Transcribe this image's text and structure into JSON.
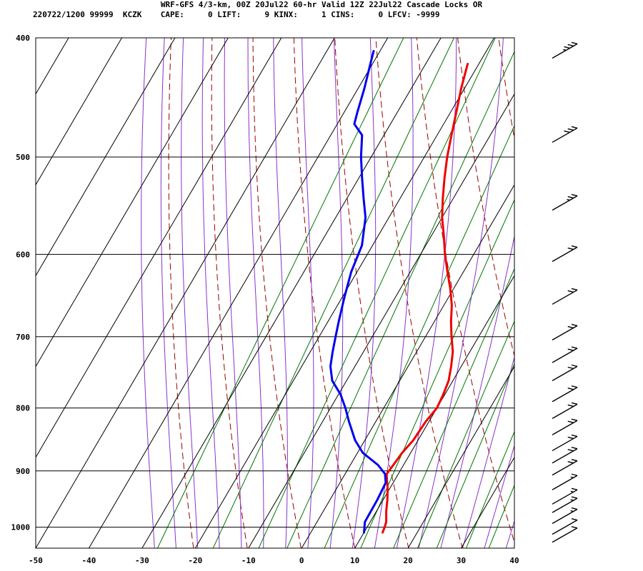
{
  "header": {
    "title": "WRF-GFS 4/3-km, 00Z 20Jul22 60-hr Valid 12Z 22Jul22 Cascade Locks OR",
    "stats": "220722/1200 99999  KCZK    CAPE:     0 LIFT:     9 KINX:     1 CINS:     0 LFCV: -9999"
  },
  "colors": {
    "temperature": "#ee0000",
    "dewpoint": "#0000ee",
    "dry_adiabat": "#990000",
    "moist_adiabat": "#8833cc",
    "mixing_ratio": "#007700",
    "isobar_isotherm": "#000000",
    "wind_barb": "#000000"
  },
  "chart_data": {
    "type": "skew-t",
    "x_axis": {
      "label": "",
      "range": [
        -50,
        40
      ],
      "ticks": [
        -50,
        -40,
        -30,
        -20,
        -10,
        0,
        10,
        20,
        30,
        40
      ]
    },
    "y_axis": {
      "label": "",
      "scale": "log",
      "range": [
        1040,
        400
      ],
      "ticks": [
        400,
        500,
        600,
        700,
        800,
        900,
        1000
      ]
    },
    "series": [
      {
        "key": "temperature",
        "points": [
          [
            1010,
            13.5
          ],
          [
            1000,
            13.3
          ],
          [
            990,
            13.0
          ],
          [
            970,
            11.8
          ],
          [
            950,
            10.8
          ],
          [
            930,
            9.6
          ],
          [
            915,
            8.5
          ],
          [
            905,
            7.8
          ],
          [
            895,
            8.0
          ],
          [
            870,
            8.4
          ],
          [
            850,
            9.1
          ],
          [
            820,
            9.4
          ],
          [
            800,
            10.0
          ],
          [
            780,
            9.7
          ],
          [
            760,
            9.2
          ],
          [
            740,
            8.1
          ],
          [
            720,
            6.8
          ],
          [
            700,
            4.9
          ],
          [
            680,
            3.1
          ],
          [
            660,
            1.5
          ],
          [
            640,
            -0.6
          ],
          [
            620,
            -3.0
          ],
          [
            600,
            -5.4
          ],
          [
            580,
            -7.6
          ],
          [
            560,
            -10.0
          ],
          [
            540,
            -12.0
          ],
          [
            520,
            -13.9
          ],
          [
            500,
            -15.7
          ],
          [
            480,
            -17.3
          ],
          [
            460,
            -18.9
          ],
          [
            440,
            -20.6
          ],
          [
            420,
            -22.1
          ]
        ]
      },
      {
        "key": "dewpoint",
        "points": [
          [
            1010,
            10.0
          ],
          [
            1000,
            9.5
          ],
          [
            990,
            9.0
          ],
          [
            950,
            8.9
          ],
          [
            920,
            8.6
          ],
          [
            905,
            7.5
          ],
          [
            890,
            5.2
          ],
          [
            870,
            1.0
          ],
          [
            850,
            -1.8
          ],
          [
            820,
            -5.1
          ],
          [
            800,
            -7.2
          ],
          [
            780,
            -9.6
          ],
          [
            760,
            -12.7
          ],
          [
            740,
            -14.6
          ],
          [
            720,
            -15.8
          ],
          [
            700,
            -16.9
          ],
          [
            680,
            -18.0
          ],
          [
            650,
            -19.6
          ],
          [
            620,
            -21.1
          ],
          [
            590,
            -22.0
          ],
          [
            560,
            -24.4
          ],
          [
            540,
            -26.9
          ],
          [
            520,
            -29.4
          ],
          [
            500,
            -31.9
          ],
          [
            480,
            -34.1
          ],
          [
            470,
            -36.8
          ],
          [
            460,
            -37.5
          ],
          [
            440,
            -38.8
          ],
          [
            420,
            -40.4
          ],
          [
            410,
            -41.2
          ]
        ]
      }
    ],
    "wind_barbs": [
      {
        "pressure": 410,
        "speed_kt": 35
      },
      {
        "pressure": 480,
        "speed_kt": 30
      },
      {
        "pressure": 545,
        "speed_kt": 25
      },
      {
        "pressure": 600,
        "speed_kt": 20
      },
      {
        "pressure": 650,
        "speed_kt": 20
      },
      {
        "pressure": 695,
        "speed_kt": 20
      },
      {
        "pressure": 725,
        "speed_kt": 20
      },
      {
        "pressure": 750,
        "speed_kt": 20
      },
      {
        "pressure": 780,
        "speed_kt": 20
      },
      {
        "pressure": 805,
        "speed_kt": 20
      },
      {
        "pressure": 830,
        "speed_kt": 20
      },
      {
        "pressure": 855,
        "speed_kt": 20
      },
      {
        "pressure": 875,
        "speed_kt": 20
      },
      {
        "pressure": 895,
        "speed_kt": 20
      },
      {
        "pressure": 920,
        "speed_kt": 15
      },
      {
        "pressure": 945,
        "speed_kt": 15
      },
      {
        "pressure": 960,
        "speed_kt": 15
      },
      {
        "pressure": 980,
        "speed_kt": 15
      },
      {
        "pressure": 1000,
        "speed_kt": 10
      },
      {
        "pressure": 1015,
        "speed_kt": 10
      }
    ]
  }
}
